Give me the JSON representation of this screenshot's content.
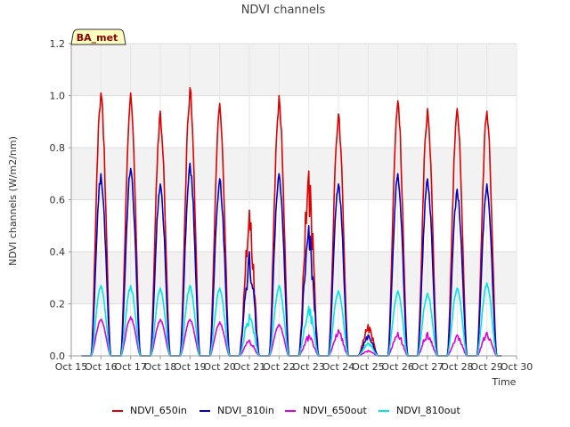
{
  "chart_data": {
    "type": "line",
    "title": "NDVI channels",
    "xlabel": "Time",
    "ylabel": "NDVI channels (W/m2/nm)",
    "badge": "BA_met",
    "ylim": [
      0,
      1.2
    ],
    "yticks": [
      "0.0",
      "0.2",
      "0.4",
      "0.6",
      "0.8",
      "1.0",
      "1.2"
    ],
    "xlim": [
      "Oct 15",
      "Oct 30"
    ],
    "xticks": [
      "Oct 15",
      "Oct 16",
      "Oct 17",
      "Oct 18",
      "Oct 19",
      "Oct 20",
      "Oct 21",
      "Oct 22",
      "Oct 23",
      "Oct 24",
      "Oct 25",
      "Oct 26",
      "Oct 27",
      "Oct 28",
      "Oct 29",
      "Oct 30"
    ],
    "grid": true,
    "legend_position": "bottom",
    "x_days": [
      16,
      17,
      18,
      19,
      20,
      21,
      22,
      23,
      24,
      25,
      26,
      27,
      28,
      29
    ],
    "series": [
      {
        "name": "NDVI_650in",
        "color": "#dd0000",
        "daily_peak": [
          1.01,
          1.01,
          0.94,
          1.03,
          0.97,
          0.56,
          1.0,
          0.71,
          0.93,
          0.12,
          0.98,
          0.95,
          0.95,
          0.94
        ]
      },
      {
        "name": "NDVI_810in",
        "color": "#0000cc",
        "daily_peak": [
          0.7,
          0.72,
          0.66,
          0.74,
          0.68,
          0.4,
          0.7,
          0.5,
          0.66,
          0.08,
          0.7,
          0.68,
          0.64,
          0.66
        ]
      },
      {
        "name": "NDVI_650out",
        "color": "#dd00dd",
        "daily_peak": [
          0.14,
          0.15,
          0.14,
          0.14,
          0.13,
          0.06,
          0.12,
          0.08,
          0.1,
          0.02,
          0.09,
          0.09,
          0.08,
          0.09
        ]
      },
      {
        "name": "NDVI_810out",
        "color": "#00e5e5",
        "daily_peak": [
          0.27,
          0.27,
          0.26,
          0.27,
          0.26,
          0.16,
          0.27,
          0.19,
          0.25,
          0.05,
          0.25,
          0.24,
          0.26,
          0.28
        ]
      }
    ]
  }
}
